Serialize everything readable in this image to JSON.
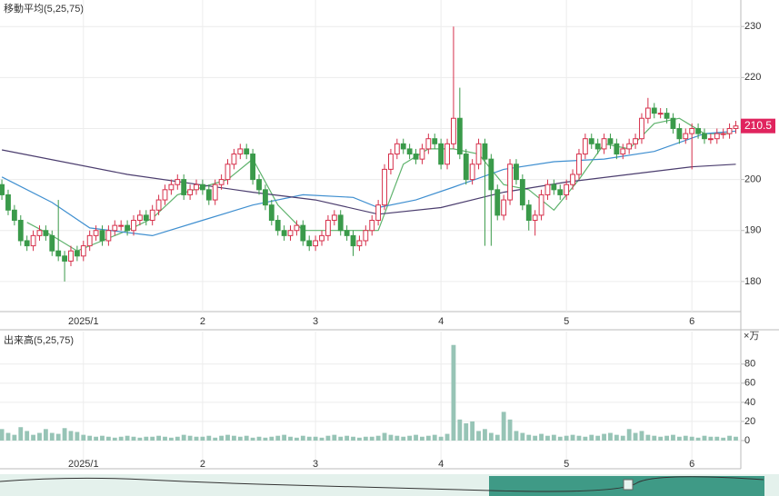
{
  "chart_data": [
    {
      "type": "candlestick",
      "title": "移動平均(5,25,75)",
      "up_color": "#d6304b",
      "down_color": "#3a9a4a",
      "open": [
        199,
        197,
        194,
        192,
        188,
        187,
        189,
        190,
        189,
        186,
        185,
        184,
        186,
        185,
        187,
        189,
        190,
        188,
        190,
        191,
        191,
        190,
        192,
        193,
        192,
        194,
        196,
        198,
        199,
        200,
        197,
        198,
        199,
        198,
        196,
        199,
        200,
        203,
        205,
        206,
        205,
        200,
        198,
        195,
        192,
        190,
        189,
        190,
        191,
        188,
        187,
        188,
        189,
        192,
        193,
        190,
        189,
        187,
        188,
        190,
        192,
        195,
        202,
        205,
        207,
        206,
        205,
        204,
        206,
        208,
        207,
        203,
        207,
        212,
        205,
        200,
        203,
        207,
        204,
        198,
        193,
        196,
        203,
        200,
        195,
        192,
        193,
        197,
        199,
        198,
        197,
        199,
        201,
        205,
        208,
        207,
        206,
        208,
        207,
        205,
        206,
        207,
        208,
        212,
        214,
        213,
        213,
        212,
        210,
        208,
        209,
        210,
        209,
        208,
        208,
        209,
        209,
        210
      ],
      "high": [
        200,
        198,
        195,
        193,
        189,
        190,
        191,
        191,
        190,
        196,
        186,
        187,
        187,
        188,
        190,
        191,
        191,
        191,
        192,
        192,
        192,
        193,
        194,
        194,
        195,
        197,
        199,
        200,
        201,
        201,
        199,
        200,
        200,
        199,
        200,
        201,
        204,
        206,
        207,
        207,
        206,
        201,
        199,
        196,
        193,
        191,
        191,
        192,
        192,
        189,
        189,
        190,
        193,
        194,
        194,
        191,
        190,
        189,
        191,
        193,
        196,
        203,
        206,
        208,
        208,
        207,
        206,
        207,
        209,
        209,
        208,
        208,
        230,
        218,
        206,
        204,
        208,
        208,
        205,
        199,
        197,
        204,
        204,
        201,
        196,
        194,
        198,
        200,
        200,
        199,
        200,
        202,
        206,
        209,
        209,
        208,
        209,
        209,
        208,
        207,
        208,
        209,
        213,
        216,
        215,
        214,
        214,
        213,
        211,
        210,
        211,
        211,
        210,
        209,
        210,
        210,
        211,
        211.5
      ],
      "low": [
        196,
        193,
        191,
        187,
        186,
        186,
        188,
        188,
        185,
        184,
        180,
        183,
        184,
        184,
        186,
        188,
        187,
        187,
        189,
        190,
        189,
        189,
        191,
        191,
        191,
        193,
        195,
        197,
        198,
        196,
        196,
        197,
        197,
        195,
        195,
        198,
        199,
        202,
        204,
        204,
        199,
        197,
        194,
        191,
        189,
        188,
        188,
        189,
        187,
        186,
        186,
        187,
        188,
        191,
        189,
        188,
        185,
        186,
        187,
        189,
        191,
        194,
        201,
        204,
        205,
        204,
        203,
        203,
        205,
        206,
        202,
        202,
        206,
        204,
        199,
        199,
        202,
        187,
        187,
        192,
        192,
        195,
        199,
        194,
        190,
        189,
        192,
        196,
        197,
        196,
        196,
        198,
        200,
        204,
        206,
        205,
        205,
        206,
        204,
        204,
        205,
        206,
        207,
        211,
        212,
        212,
        211,
        209,
        207,
        207,
        202,
        208,
        207,
        207,
        207,
        208,
        208,
        209
      ],
      "close": [
        197,
        194,
        192,
        188,
        187,
        189,
        190,
        189,
        186,
        185,
        184,
        186,
        185,
        187,
        189,
        190,
        188,
        190,
        191,
        191,
        190,
        192,
        193,
        192,
        194,
        196,
        198,
        199,
        200,
        197,
        198,
        199,
        198,
        196,
        199,
        200,
        203,
        205,
        206,
        205,
        200,
        198,
        195,
        192,
        190,
        189,
        190,
        191,
        188,
        187,
        188,
        189,
        192,
        193,
        190,
        189,
        187,
        188,
        190,
        192,
        195,
        202,
        205,
        207,
        206,
        205,
        204,
        206,
        208,
        207,
        203,
        207,
        212,
        205,
        200,
        203,
        207,
        204,
        198,
        193,
        196,
        203,
        200,
        195,
        192,
        193,
        197,
        199,
        198,
        197,
        199,
        201,
        205,
        208,
        207,
        206,
        208,
        207,
        205,
        206,
        207,
        208,
        212,
        214,
        213,
        213,
        212,
        210,
        208,
        209,
        210,
        209,
        208,
        208,
        209,
        209,
        210,
        210.5
      ],
      "moving_averages": [
        {
          "color": "#5fb36d",
          "x": [
            4,
            8,
            12,
            16,
            20,
            24,
            28,
            32,
            36,
            40,
            44,
            48,
            52,
            56,
            60,
            64,
            68,
            72,
            76,
            80,
            84,
            88,
            92,
            96,
            100,
            104,
            108,
            112,
            116
          ],
          "values": [
            191.6,
            189,
            186,
            188,
            190,
            192.4,
            197,
            198.5,
            200,
            204,
            195,
            190,
            190,
            190,
            190,
            203,
            206,
            206,
            205,
            199,
            198,
            194,
            200,
            207,
            206,
            211,
            212,
            209,
            209
          ]
        },
        {
          "color": "#3f8fd0",
          "x": [
            0,
            8,
            14,
            24,
            32,
            40,
            48,
            56,
            60,
            66,
            72,
            80,
            88,
            96,
            104,
            112,
            117
          ],
          "values": [
            200.5,
            195.5,
            190.5,
            189,
            192,
            195,
            197,
            196.5,
            194.5,
            196,
            198.5,
            202,
            203.5,
            204,
            205.5,
            209,
            209.5
          ]
        },
        {
          "color": "#4b3d6e",
          "x": [
            0,
            20,
            40,
            50,
            60,
            70,
            80,
            90,
            100,
            110,
            117
          ],
          "values": [
            205.8,
            201,
            197.5,
            196,
            193.2,
            194.5,
            197.5,
            199.5,
            201,
            202.5,
            203
          ]
        }
      ],
      "xlim": [
        -0.3,
        117.8
      ],
      "xticks": [
        {
          "value": 13,
          "label": "2025/1"
        },
        {
          "value": 32,
          "label": "2"
        },
        {
          "value": 50,
          "label": "3"
        },
        {
          "value": 70,
          "label": "4"
        },
        {
          "value": 90,
          "label": "5"
        },
        {
          "value": 110,
          "label": "6"
        }
      ],
      "ylim": [
        174.1,
        235.2
      ],
      "yticks": [
        180,
        190,
        200,
        210,
        220,
        230
      ],
      "grid": true
    },
    {
      "type": "bar",
      "title": "出来高(5,25,75)",
      "y_unit": "×万",
      "color": "#97c4b6",
      "values": [
        12,
        8,
        6,
        14,
        10,
        6,
        8,
        12,
        8,
        7,
        13,
        10,
        9,
        6,
        5,
        4,
        5,
        4,
        3,
        4,
        5,
        4,
        3,
        4,
        4,
        5,
        4,
        3,
        4,
        6,
        5,
        4,
        4,
        5,
        3,
        5,
        6,
        5,
        4,
        5,
        3,
        4,
        3,
        4,
        5,
        6,
        4,
        3,
        5,
        4,
        4,
        3,
        5,
        6,
        4,
        5,
        4,
        3,
        4,
        4,
        5,
        8,
        6,
        5,
        4,
        5,
        6,
        4,
        5,
        6,
        4,
        7,
        100,
        22,
        18,
        20,
        10,
        12,
        8,
        6,
        30,
        22,
        10,
        8,
        6,
        5,
        7,
        5,
        6,
        4,
        5,
        6,
        5,
        4,
        6,
        5,
        7,
        8,
        6,
        5,
        12,
        8,
        10,
        6,
        5,
        4,
        5,
        6,
        4,
        5,
        4,
        3,
        5,
        4,
        4,
        3,
        5,
        4
      ],
      "xlim": [
        -0.3,
        117.8
      ],
      "xticks": [
        {
          "value": 13,
          "label": "2025/1"
        },
        {
          "value": 32,
          "label": "2"
        },
        {
          "value": 50,
          "label": "3"
        },
        {
          "value": 70,
          "label": "4"
        },
        {
          "value": 90,
          "label": "5"
        },
        {
          "value": 110,
          "label": "6"
        }
      ],
      "ylim": [
        -29.5,
        114
      ],
      "yticks": [
        0,
        20,
        40,
        60,
        80
      ],
      "grid": true
    }
  ]
}
